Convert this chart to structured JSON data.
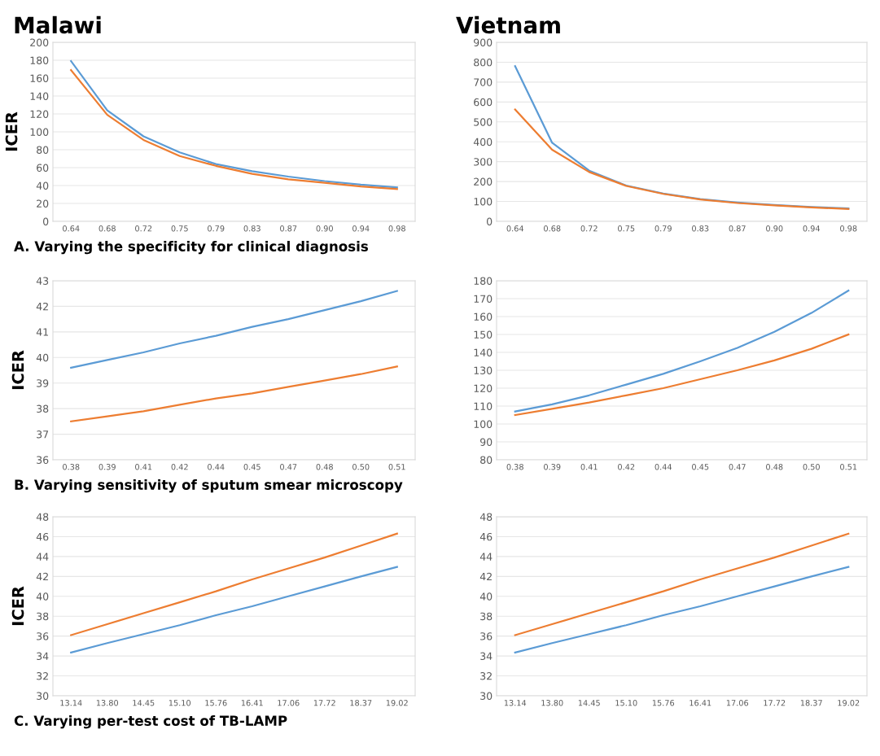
{
  "chart_data": [
    {
      "type": "line",
      "title": "Malawi",
      "ylabel": "ICER",
      "categories": [
        "0.64",
        "0.68",
        "0.72",
        "0.75",
        "0.79",
        "0.83",
        "0.87",
        "0.90",
        "0.94",
        "0.98"
      ],
      "ylim": [
        0,
        200
      ],
      "yticks": [
        0,
        20,
        40,
        60,
        80,
        100,
        120,
        140,
        160,
        180,
        200
      ],
      "grid": "y",
      "annotations": [
        "A. Varying the specificity for clinical diagnosis"
      ],
      "series": [
        {
          "color": "#5b9bd5",
          "values": [
            179,
            124,
            95,
            77,
            64,
            56,
            50,
            45,
            41,
            38
          ]
        },
        {
          "color": "#ed7d31",
          "values": [
            169,
            119,
            91,
            73,
            62,
            53,
            47,
            43,
            39,
            36
          ]
        }
      ]
    },
    {
      "type": "line",
      "title": "Vietnam",
      "categories": [
        "0.64",
        "0.68",
        "0.72",
        "0.75",
        "0.79",
        "0.83",
        "0.87",
        "0.90",
        "0.94",
        "0.98"
      ],
      "ylim": [
        0,
        900
      ],
      "yticks": [
        0,
        100,
        200,
        300,
        400,
        500,
        600,
        700,
        800,
        900
      ],
      "grid": "y",
      "series": [
        {
          "color": "#5b9bd5",
          "values": [
            780,
            395,
            255,
            180,
            140,
            112,
            95,
            82,
            72,
            65
          ]
        },
        {
          "color": "#ed7d31",
          "values": [
            562,
            360,
            248,
            178,
            138,
            110,
            92,
            80,
            70,
            62
          ]
        }
      ]
    },
    {
      "type": "line",
      "ylabel": "ICER",
      "categories": [
        "0.38",
        "0.39",
        "0.41",
        "0.42",
        "0.44",
        "0.45",
        "0.47",
        "0.48",
        "0.50",
        "0.51"
      ],
      "ylim": [
        36,
        43
      ],
      "yticks": [
        36,
        37,
        38,
        39,
        40,
        41,
        42,
        43
      ],
      "grid": "y",
      "annotations": [
        "B. Varying sensitivity of sputum smear microscopy"
      ],
      "series": [
        {
          "color": "#5b9bd5",
          "values": [
            39.6,
            39.9,
            40.2,
            40.55,
            40.85,
            41.2,
            41.5,
            41.85,
            42.2,
            42.6
          ]
        },
        {
          "color": "#ed7d31",
          "values": [
            37.5,
            37.7,
            37.9,
            38.15,
            38.4,
            38.6,
            38.85,
            39.1,
            39.35,
            39.65
          ]
        }
      ]
    },
    {
      "type": "line",
      "categories": [
        "0.38",
        "0.39",
        "0.41",
        "0.42",
        "0.44",
        "0.45",
        "0.47",
        "0.48",
        "0.50",
        "0.51"
      ],
      "ylim": [
        80,
        180
      ],
      "yticks": [
        80,
        90,
        100,
        110,
        120,
        130,
        140,
        150,
        160,
        170,
        180
      ],
      "grid": "y",
      "series": [
        {
          "color": "#5b9bd5",
          "values": [
            107,
            111,
            116,
            122,
            128,
            135,
            142.5,
            151.5,
            162,
            174.5
          ]
        },
        {
          "color": "#ed7d31",
          "values": [
            105,
            108.5,
            112,
            116,
            120,
            125,
            130,
            135.5,
            142,
            150
          ]
        }
      ]
    },
    {
      "type": "line",
      "ylabel": "ICER",
      "categories": [
        "13.14",
        "13.80",
        "14.45",
        "15.10",
        "15.76",
        "16.41",
        "17.06",
        "17.72",
        "18.37",
        "19.02"
      ],
      "ylim": [
        30,
        48
      ],
      "yticks": [
        30,
        32,
        34,
        36,
        38,
        40,
        42,
        44,
        46,
        48
      ],
      "grid": "y",
      "annotations": [
        "C. Varying per-test cost of TB-LAMP"
      ],
      "series": [
        {
          "color": "#5b9bd5",
          "values": [
            34.35,
            35.3,
            36.2,
            37.1,
            38.1,
            39.0,
            40.0,
            41.0,
            42.0,
            42.95
          ]
        },
        {
          "color": "#ed7d31",
          "values": [
            36.1,
            37.2,
            38.3,
            39.4,
            40.5,
            41.7,
            42.8,
            43.9,
            45.1,
            46.3
          ]
        }
      ]
    },
    {
      "type": "line",
      "categories": [
        "13.14",
        "13.80",
        "14.45",
        "15.10",
        "15.76",
        "16.41",
        "17.06",
        "17.72",
        "18.37",
        "19.02"
      ],
      "ylim": [
        30,
        48
      ],
      "yticks": [
        30,
        32,
        34,
        36,
        38,
        40,
        42,
        44,
        46,
        48
      ],
      "grid": "y",
      "series": [
        {
          "color": "#5b9bd5",
          "values": [
            34.35,
            35.3,
            36.2,
            37.1,
            38.1,
            39.0,
            40.0,
            41.0,
            42.0,
            42.95
          ]
        },
        {
          "color": "#ed7d31",
          "values": [
            36.1,
            37.2,
            38.3,
            39.4,
            40.5,
            41.7,
            42.8,
            43.9,
            45.1,
            46.3
          ]
        }
      ]
    }
  ]
}
